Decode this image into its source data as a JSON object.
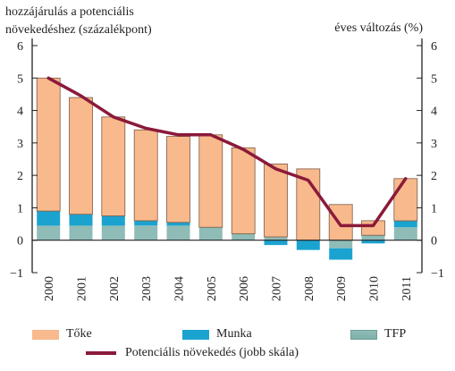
{
  "chart_data": {
    "type": "bar",
    "stacked": true,
    "title_left_line1": "hozzájárulás a potenciális",
    "title_left_line2": "növekedéshez (százalékpont)",
    "title_right": "éves változás (%)",
    "categories": [
      "2000",
      "2001",
      "2002",
      "2003",
      "2004",
      "2005",
      "2006",
      "2007",
      "2008",
      "2009",
      "2010",
      "2011"
    ],
    "ylim_left": [
      -1,
      6
    ],
    "ylim_right": [
      -1,
      6
    ],
    "yticks_left": [
      "-1",
      "0",
      "1",
      "2",
      "3",
      "4",
      "5",
      "6"
    ],
    "yticks_right": [
      "-1",
      "0",
      "1",
      "2",
      "3",
      "4",
      "5",
      "6"
    ],
    "grid": false,
    "series": [
      {
        "name": "Tőke",
        "role": "bar",
        "color": "#f8b98c",
        "values": [
          4.1,
          3.6,
          3.05,
          2.8,
          2.65,
          2.85,
          2.65,
          2.25,
          2.2,
          1.1,
          0.45,
          1.3
        ]
      },
      {
        "name": "Munka",
        "role": "bar",
        "color": "#1ba3d0",
        "values": [
          0.45,
          0.35,
          0.3,
          0.15,
          0.1,
          0.0,
          0.0,
          -0.15,
          -0.3,
          -0.35,
          -0.1,
          0.2
        ]
      },
      {
        "name": "TFP",
        "role": "bar",
        "color": "#8fbcb6",
        "values": [
          0.45,
          0.45,
          0.45,
          0.45,
          0.45,
          0.4,
          0.2,
          0.1,
          0.0,
          -0.25,
          0.15,
          0.4
        ]
      },
      {
        "name": "Potenciális növekedés (jobb skála)",
        "role": "line",
        "color": "#8b1a3a",
        "values": [
          5.0,
          4.45,
          3.8,
          3.45,
          3.25,
          3.25,
          2.8,
          2.2,
          1.85,
          0.45,
          0.45,
          1.9
        ]
      }
    ]
  }
}
